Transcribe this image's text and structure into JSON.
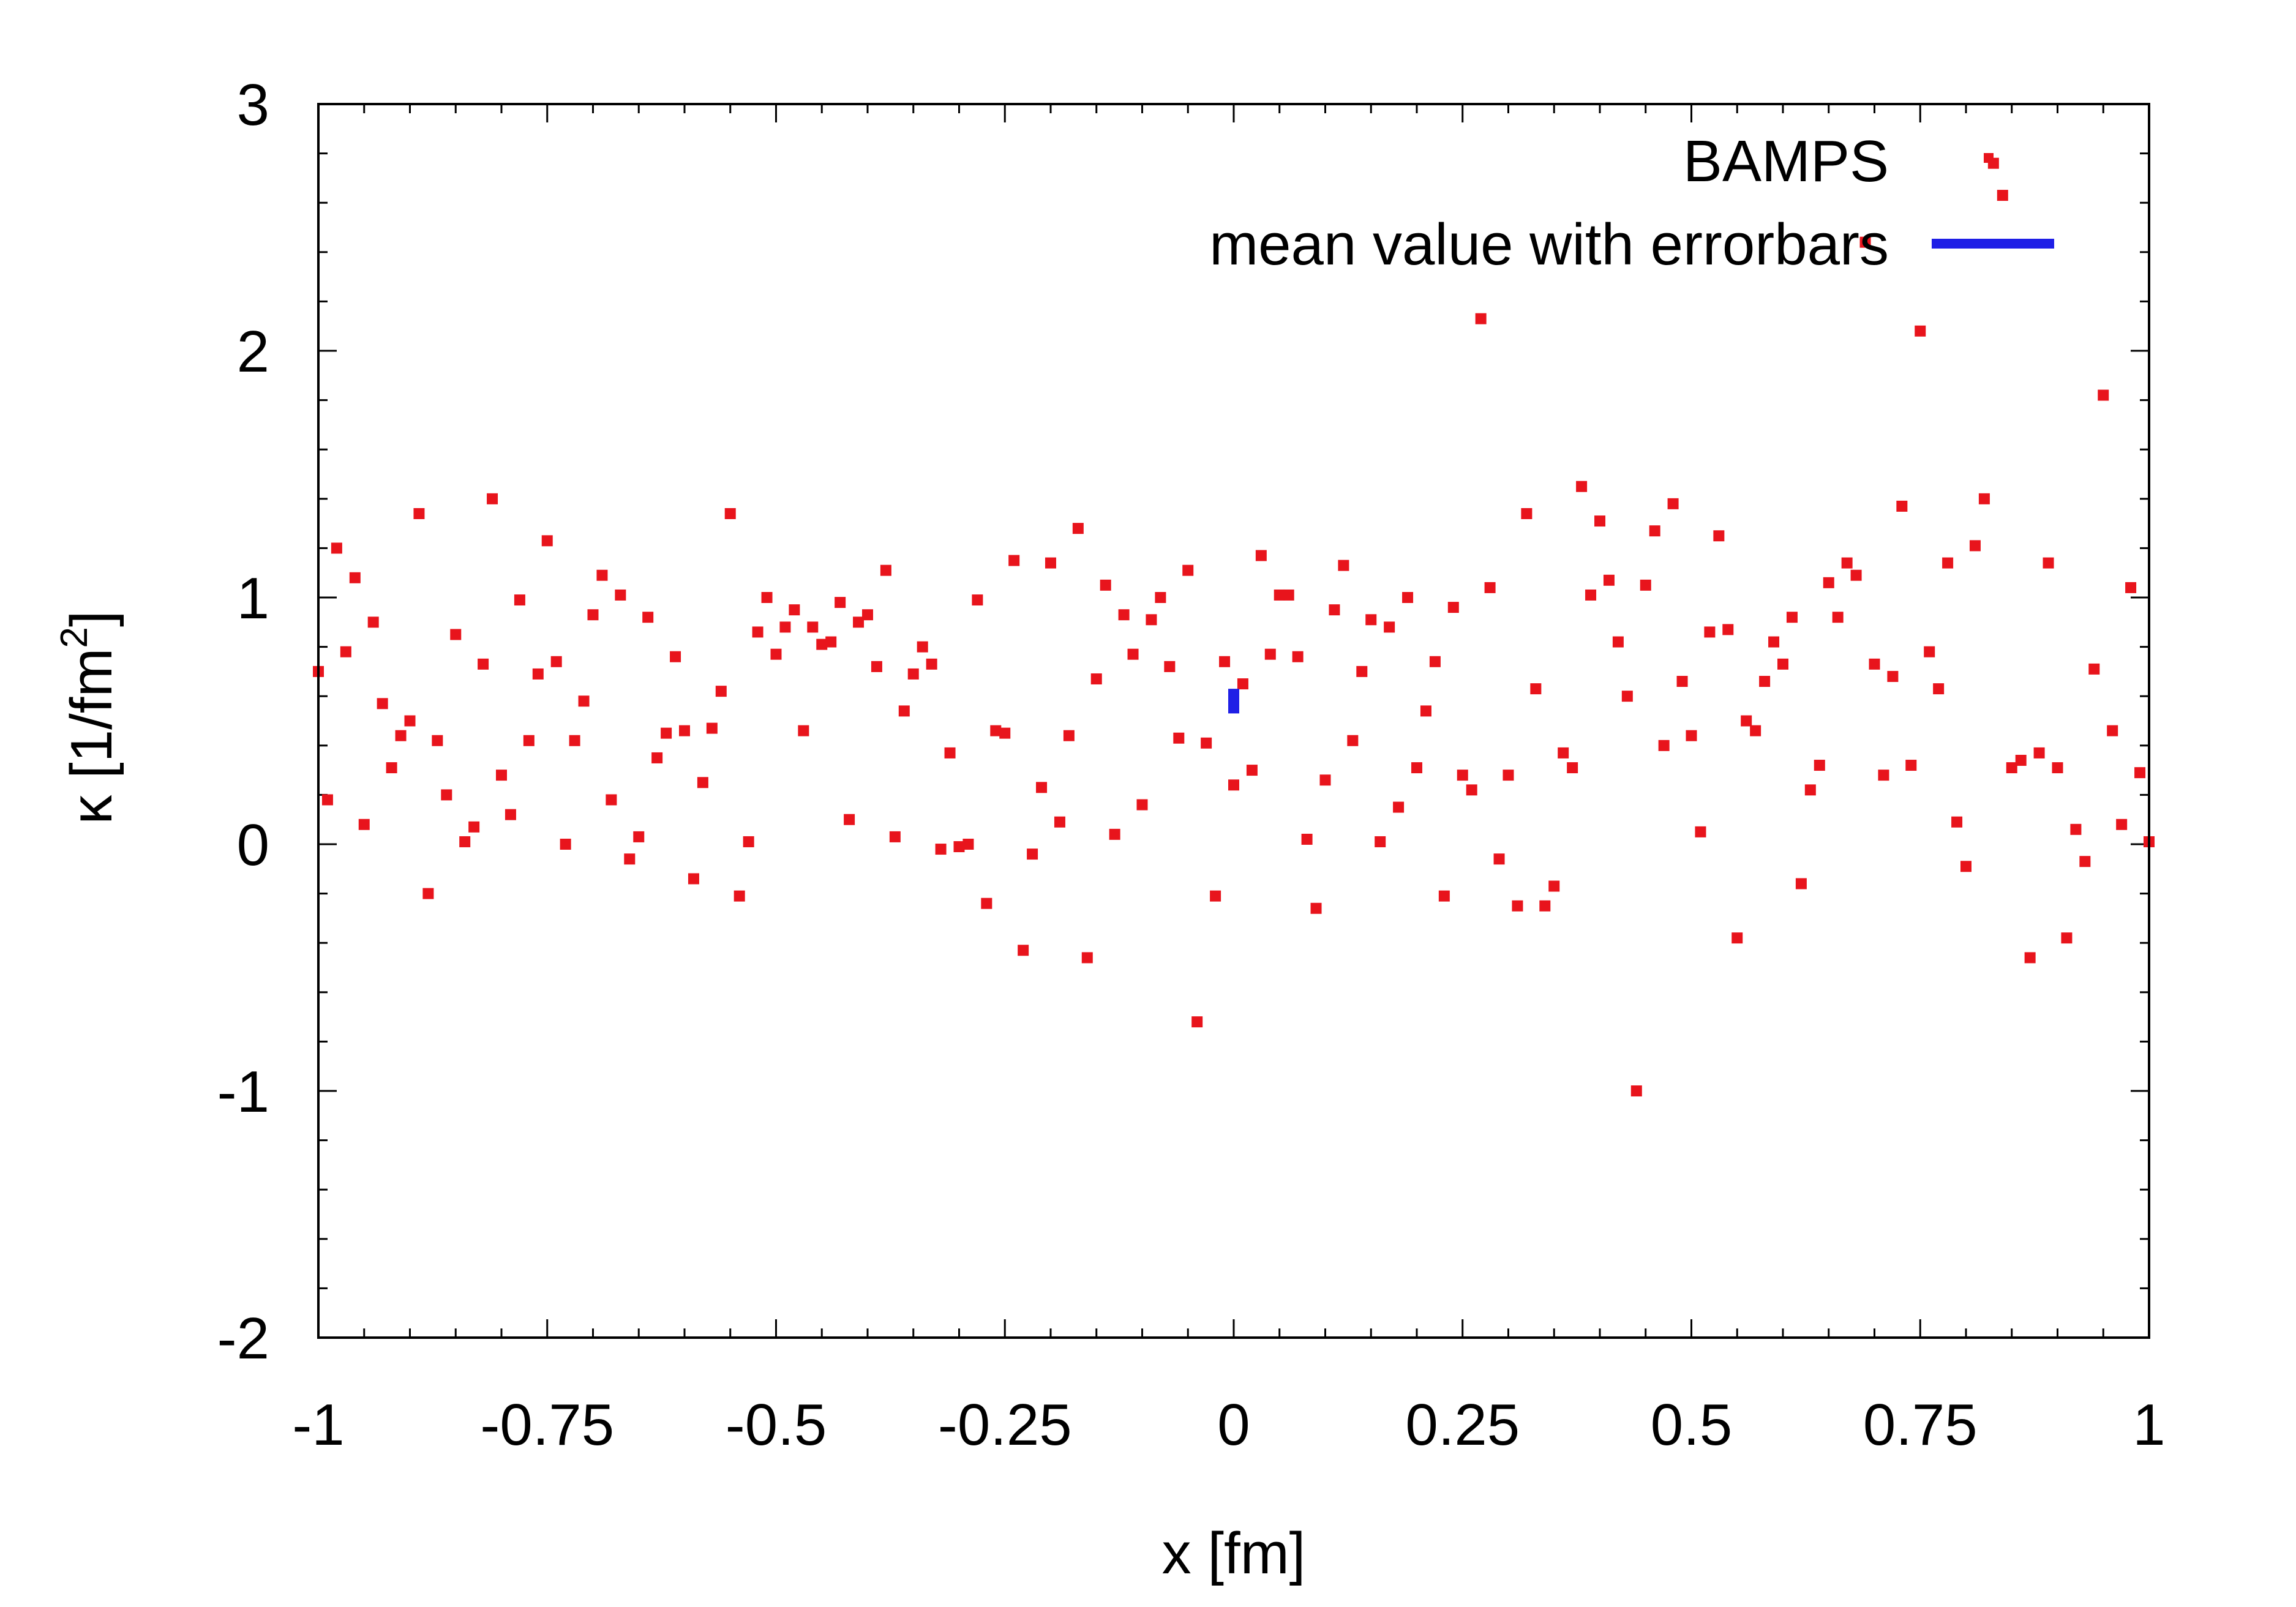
{
  "chart_data": {
    "type": "scatter",
    "xlabel": "x [fm]",
    "ylabel_main": "κ [1/fm",
    "ylabel_sup": "2",
    "ylabel_tail": "]",
    "xlim": [
      -1,
      1
    ],
    "ylim": [
      -2,
      3
    ],
    "x_ticks": [
      -1,
      -0.75,
      -0.5,
      -0.25,
      0,
      0.25,
      0.5,
      0.75,
      1
    ],
    "x_tick_labels": [
      "-1",
      "-0.75",
      "-0.5",
      "-0.25",
      "0",
      "0.25",
      "0.5",
      "0.75",
      "1"
    ],
    "y_ticks": [
      -2,
      -1,
      0,
      1,
      2,
      3
    ],
    "y_tick_labels": [
      "-2",
      "-1",
      "0",
      "1",
      "2",
      "3"
    ],
    "grid": false,
    "legend_position": "top-right",
    "colors": {
      "points": "#e8141c",
      "mean": "#1f1fe6"
    },
    "series": [
      {
        "name": "BAMPS",
        "marker": "square",
        "x": [
          -1.0,
          -0.99,
          -0.98,
          -0.97,
          -0.96,
          -0.95,
          -0.94,
          -0.93,
          -0.92,
          -0.91,
          -0.9,
          -0.89,
          -0.88,
          -0.87,
          -0.86,
          -0.85,
          -0.84,
          -0.83,
          -0.82,
          -0.81,
          -0.8,
          -0.79,
          -0.78,
          -0.77,
          -0.76,
          -0.75,
          -0.74,
          -0.73,
          -0.72,
          -0.71,
          -0.7,
          -0.69,
          -0.68,
          -0.67,
          -0.66,
          -0.65,
          -0.64,
          -0.63,
          -0.62,
          -0.61,
          -0.6,
          -0.59,
          -0.58,
          -0.57,
          -0.56,
          -0.55,
          -0.54,
          -0.53,
          -0.52,
          -0.51,
          -0.5,
          -0.49,
          -0.48,
          -0.47,
          -0.46,
          -0.45,
          -0.44,
          -0.43,
          -0.42,
          -0.41,
          -0.4,
          -0.39,
          -0.38,
          -0.37,
          -0.36,
          -0.35,
          -0.34,
          -0.33,
          -0.32,
          -0.31,
          -0.3,
          -0.29,
          -0.28,
          -0.27,
          -0.26,
          -0.25,
          -0.24,
          -0.23,
          -0.22,
          -0.21,
          -0.2,
          -0.19,
          -0.18,
          -0.17,
          -0.16,
          -0.15,
          -0.14,
          -0.13,
          -0.12,
          -0.11,
          -0.1,
          -0.09,
          -0.08,
          -0.07,
          -0.06,
          -0.05,
          -0.04,
          -0.03,
          -0.02,
          -0.01,
          0.0,
          0.01,
          0.02,
          0.03,
          0.04,
          0.05,
          0.06,
          0.07,
          0.08,
          0.09,
          0.1,
          0.11,
          0.12,
          0.13,
          0.14,
          0.15,
          0.16,
          0.17,
          0.18,
          0.19,
          0.2,
          0.21,
          0.22,
          0.23,
          0.24,
          0.25,
          0.26,
          0.27,
          0.28,
          0.29,
          0.3,
          0.31,
          0.32,
          0.33,
          0.34,
          0.35,
          0.36,
          0.37,
          0.38,
          0.39,
          0.4,
          0.41,
          0.42,
          0.43,
          0.44,
          0.45,
          0.46,
          0.47,
          0.48,
          0.49,
          0.5,
          0.51,
          0.52,
          0.53,
          0.54,
          0.55,
          0.56,
          0.57,
          0.58,
          0.59,
          0.6,
          0.61,
          0.62,
          0.63,
          0.64,
          0.65,
          0.66,
          0.67,
          0.68,
          0.69,
          0.7,
          0.71,
          0.72,
          0.73,
          0.74,
          0.75,
          0.76,
          0.77,
          0.78,
          0.79,
          0.8,
          0.81,
          0.82,
          0.83,
          0.84,
          0.85,
          0.86,
          0.87,
          0.88,
          0.89,
          0.9,
          0.91,
          0.92,
          0.93,
          0.94,
          0.95,
          0.96,
          0.97,
          0.98,
          0.99,
          1.0
        ],
        "y": [
          0.7,
          0.18,
          1.2,
          0.78,
          1.08,
          0.08,
          0.9,
          0.57,
          0.31,
          0.44,
          0.5,
          1.34,
          -0.2,
          0.42,
          0.2,
          0.85,
          0.01,
          0.07,
          0.73,
          1.4,
          0.28,
          0.12,
          0.99,
          0.42,
          0.69,
          1.23,
          0.74,
          0.0,
          0.42,
          0.58,
          0.93,
          1.09,
          0.18,
          1.01,
          -0.06,
          0.03,
          0.92,
          0.35,
          0.45,
          0.76,
          0.46,
          -0.14,
          0.25,
          0.47,
          0.62,
          1.34,
          -0.21,
          0.01,
          0.86,
          1.0,
          0.77,
          0.88,
          0.95,
          0.46,
          0.88,
          0.81,
          0.82,
          0.98,
          0.1,
          0.9,
          0.93,
          0.72,
          1.11,
          0.03,
          0.54,
          0.69,
          0.8,
          0.73,
          -0.02,
          0.37,
          -0.01,
          0.0,
          0.99,
          -0.24,
          0.46,
          0.45,
          1.15,
          -0.43,
          -0.04,
          0.23,
          1.14,
          0.09,
          0.44,
          1.28,
          -0.46,
          0.67,
          1.05,
          0.04,
          0.93,
          0.77,
          0.16,
          0.91,
          1.0,
          0.72,
          0.43,
          1.11,
          -0.72,
          0.41,
          -0.21,
          0.74,
          0.24,
          0.65,
          0.3,
          1.17,
          0.77,
          1.01,
          1.01,
          0.76,
          0.02,
          -0.26,
          0.26,
          0.95,
          1.13,
          0.42,
          0.7,
          0.91,
          0.01,
          0.88,
          0.15,
          1.0,
          0.31,
          0.54,
          0.74,
          -0.21,
          0.96,
          0.28,
          0.22,
          2.13,
          1.04,
          -0.06,
          0.28,
          -0.25,
          1.34,
          0.63,
          -0.25,
          -0.17,
          0.37,
          0.31,
          1.45,
          1.01,
          1.31,
          1.07,
          0.82,
          0.6,
          -1.0,
          1.05,
          1.27,
          0.4,
          1.38,
          0.66,
          0.44,
          0.05,
          0.86,
          1.25,
          0.87,
          -0.38,
          0.5,
          0.46,
          0.66,
          0.82,
          0.73,
          0.92,
          -0.16,
          0.22,
          0.32,
          1.06,
          0.92,
          1.14,
          1.09,
          2.44,
          0.73,
          0.28,
          0.68,
          1.37,
          0.32,
          2.08,
          0.78,
          0.63,
          1.14,
          0.09,
          -0.09,
          1.21,
          1.4,
          2.76,
          2.63,
          0.31,
          0.34,
          -0.46,
          0.37,
          1.14,
          0.31,
          -0.38,
          0.06,
          -0.07,
          0.71,
          1.82,
          0.46,
          0.08,
          1.04,
          0.29,
          0.01
        ]
      },
      {
        "name": "mean value with errorbars",
        "marker": "errorbar",
        "x": [
          0.0
        ],
        "y": [
          0.58
        ],
        "yerr": [
          0.05
        ]
      }
    ]
  }
}
